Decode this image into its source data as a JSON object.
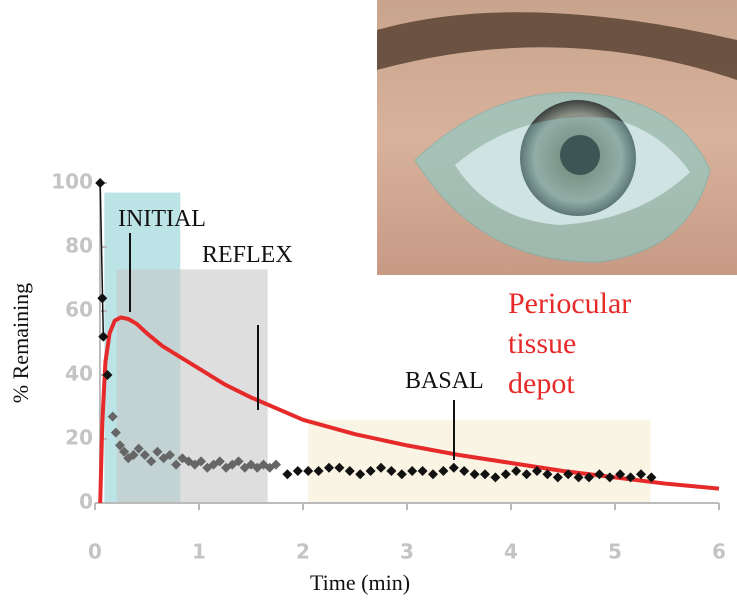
{
  "chart_data": {
    "type": "scatter",
    "xlabel": "Time (min)",
    "ylabel": "% Remaining",
    "xlim": [
      0,
      6
    ],
    "xticks": [
      0,
      1,
      2,
      3,
      4,
      5,
      6
    ],
    "ylim": [
      0,
      100
    ],
    "yticks": [
      0,
      20,
      40,
      60,
      80,
      100
    ],
    "regions": [
      {
        "label": "INITIAL",
        "x": [
          0.09,
          0.82
        ],
        "top": 97,
        "color": "#8fd1d6"
      },
      {
        "label": "REFLEX",
        "x": [
          0.21,
          1.66
        ],
        "top": 73,
        "color": "#c8c8c8"
      },
      {
        "label": "BASAL",
        "x": [
          2.05,
          5.34
        ],
        "top": 26,
        "color": "#f5ecd2"
      }
    ],
    "series": [
      {
        "color": "#111111",
        "x": [
          0.05,
          0.07,
          0.08,
          0.12,
          1.85,
          1.95,
          2.05,
          2.15,
          2.25,
          2.35,
          2.45,
          2.55,
          2.65,
          2.75,
          2.85,
          2.95,
          3.05,
          3.15,
          3.25,
          3.35,
          3.45,
          3.55,
          3.65,
          3.75,
          3.85,
          3.95,
          4.05,
          4.15,
          4.25,
          4.35,
          4.45,
          4.55,
          4.65,
          4.75,
          4.85,
          4.95,
          5.05,
          5.15,
          5.25,
          5.35
        ],
        "values": [
          100,
          64,
          52,
          40,
          9,
          10,
          10,
          10,
          11,
          11,
          10,
          9,
          10,
          11,
          10,
          9,
          10,
          10,
          9,
          10,
          11,
          10,
          9,
          9,
          8,
          9,
          10,
          9,
          10,
          9,
          8,
          9,
          8,
          8,
          9,
          8,
          9,
          8,
          9,
          8
        ]
      },
      {
        "color": "#666666",
        "x": [
          0.17,
          0.2,
          0.24,
          0.28,
          0.32,
          0.37,
          0.42,
          0.48,
          0.54,
          0.6,
          0.66,
          0.72,
          0.78,
          0.84,
          0.9,
          0.96,
          1.02,
          1.08,
          1.14,
          1.2,
          1.26,
          1.32,
          1.38,
          1.44,
          1.5,
          1.56,
          1.62,
          1.68,
          1.74
        ],
        "values": [
          27,
          22,
          18,
          16,
          14,
          15,
          17,
          15,
          13,
          16,
          14,
          15,
          12,
          14,
          13,
          12,
          13,
          11,
          12,
          13,
          11,
          12,
          13,
          11,
          12,
          11,
          12,
          11,
          12
        ]
      }
    ],
    "curve": {
      "label": [
        "Periocular",
        "tissue",
        "depot"
      ],
      "color": "#e62a2a",
      "x": [
        0.05,
        0.07,
        0.1,
        0.14,
        0.19,
        0.25,
        0.32,
        0.4,
        0.5,
        0.65,
        0.8,
        1,
        1.25,
        1.5,
        1.75,
        2,
        2.5,
        3,
        3.5,
        4,
        4.5,
        5,
        5.5,
        6
      ],
      "values": [
        0,
        25,
        44,
        53,
        57,
        58,
        57.5,
        56,
        53,
        49,
        46,
        42,
        37,
        33,
        29.5,
        26,
        21.5,
        18,
        15,
        12.5,
        10,
        8,
        6,
        4.5
      ]
    }
  }
}
